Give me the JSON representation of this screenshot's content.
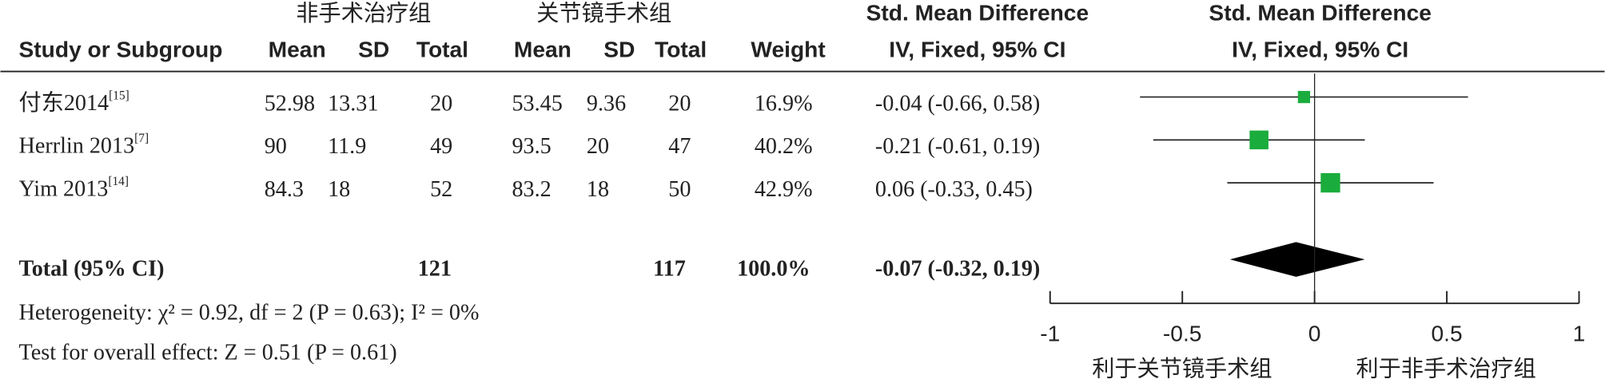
{
  "chart_data": {
    "type": "forest",
    "group_headers": [
      "非手术治疗组",
      "关节镜手术组"
    ],
    "effect_header": "Std. Mean Difference",
    "method_header": "IV, Fixed, 95% CI",
    "column_headers": [
      "Study or Subgroup",
      "Mean",
      "SD",
      "Total",
      "Mean",
      "SD",
      "Total",
      "Weight"
    ],
    "studies": [
      {
        "name": "付东2014",
        "ref": "[15]",
        "cells": [
          52.98,
          13.31,
          20,
          53.45,
          9.36,
          20
        ],
        "weight": 16.9,
        "weight_label": "16.9%",
        "estimate": -0.04,
        "ci": [
          -0.66,
          0.58
        ],
        "ci_label": "-0.04 (-0.66, 0.58)"
      },
      {
        "name": "Herrlin 2013",
        "ref": "[7]",
        "cells": [
          90,
          11.9,
          49,
          93.5,
          20,
          47
        ],
        "weight": 40.2,
        "weight_label": "40.2%",
        "estimate": -0.21,
        "ci": [
          -0.61,
          0.19
        ],
        "ci_label": "-0.21 (-0.61, 0.19)"
      },
      {
        "name": "Yim 2013",
        "ref": "[14]",
        "cells": [
          84.3,
          18,
          52,
          83.2,
          18,
          50
        ],
        "weight": 42.9,
        "weight_label": "42.9%",
        "estimate": 0.06,
        "ci": [
          -0.33,
          0.45
        ],
        "ci_label": "0.06 (-0.33, 0.45)"
      }
    ],
    "total": {
      "name": "Total (95% CI)",
      "total1": 121,
      "total2": 117,
      "weight_label": "100.0%",
      "estimate": -0.07,
      "ci": [
        -0.32,
        0.19
      ],
      "ci_label": "-0.07 (-0.32, 0.19)"
    },
    "heterogeneity": "Heterogeneity: χ² = 0.92, df = 2 (P = 0.63); I² = 0%",
    "overall_test": "Test for overall effect: Z = 0.51 (P = 0.61)",
    "xlim": [
      -1,
      1
    ],
    "xticks": [
      -1,
      -0.5,
      0,
      0.5,
      1
    ],
    "favors": [
      "利于关节镜手术组",
      "利于非手术治疗组"
    ],
    "color": "#1aac3c"
  }
}
